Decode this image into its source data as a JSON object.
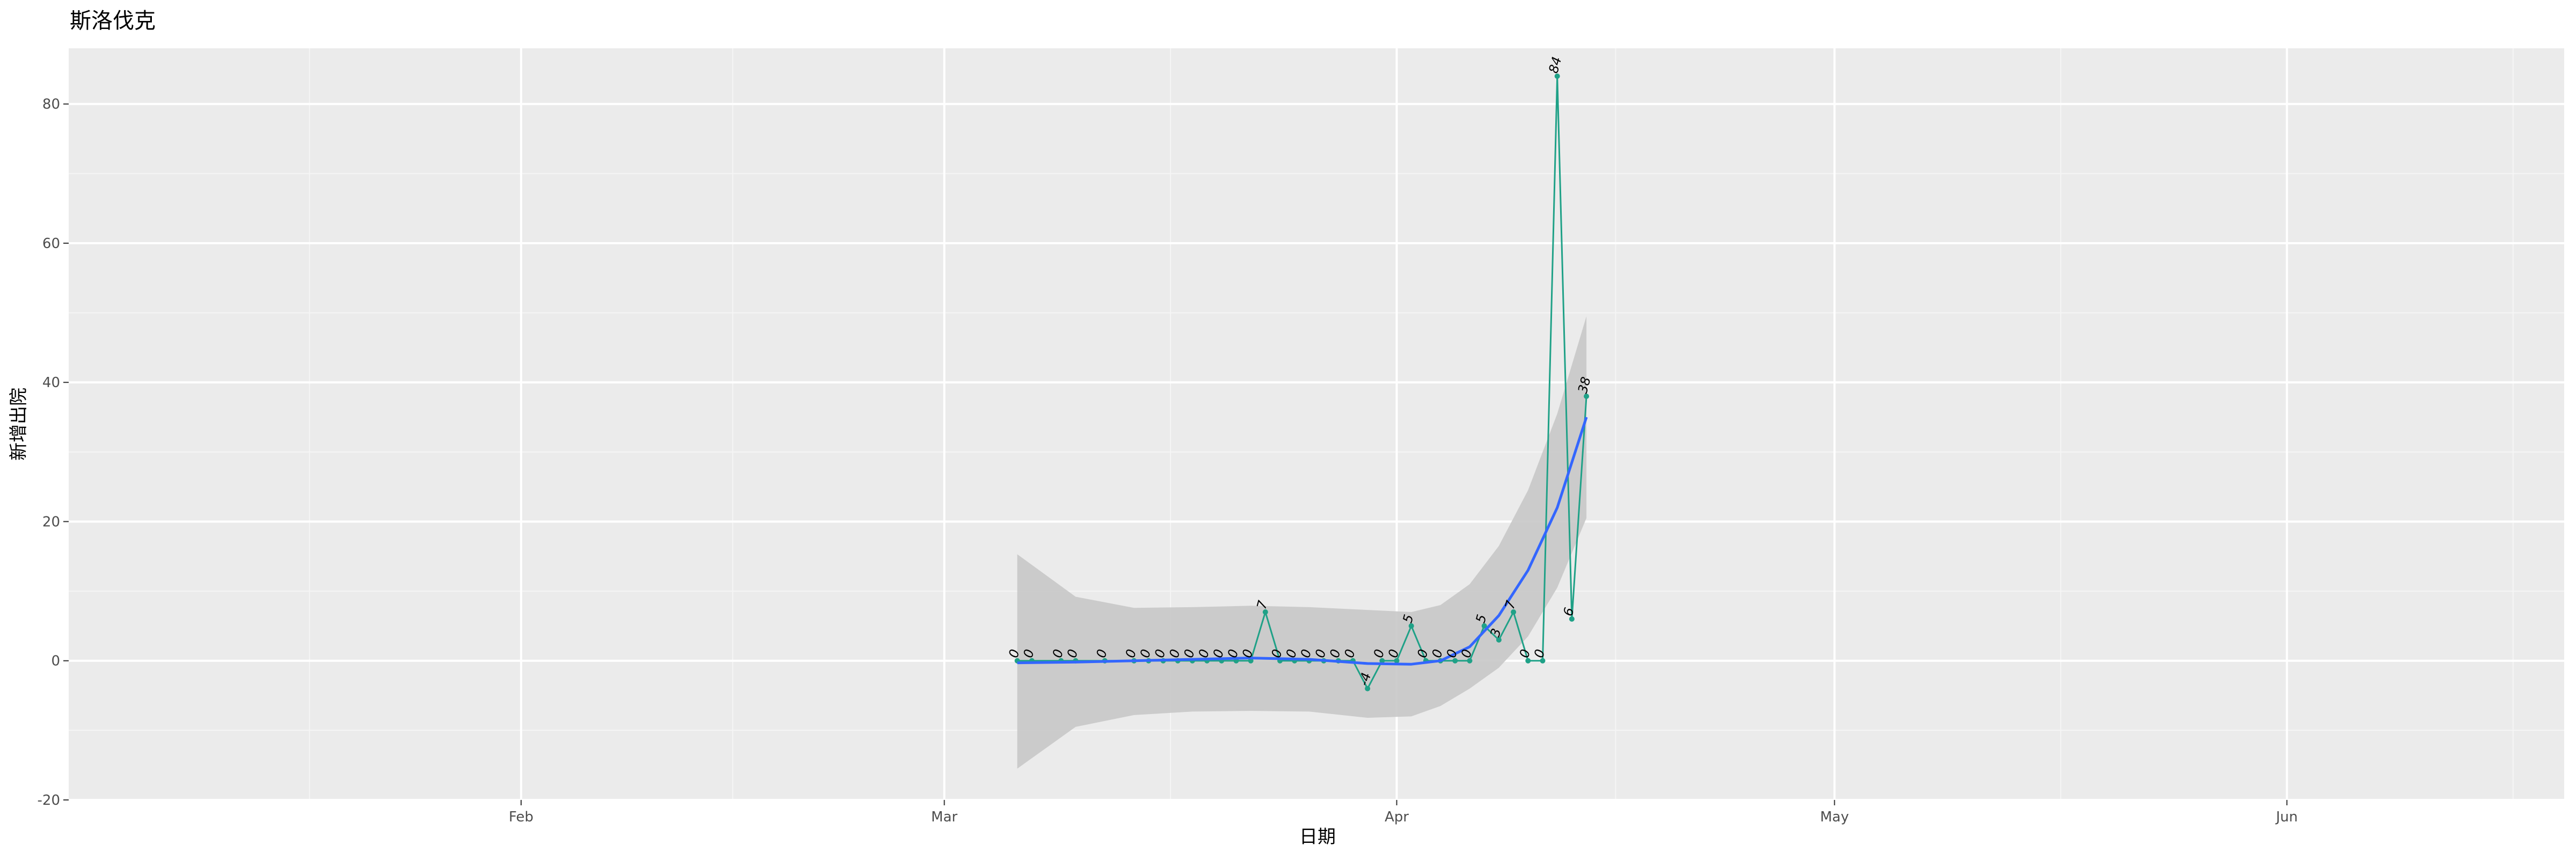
{
  "chart_data": {
    "type": "line",
    "title": "斯洛伐克",
    "xlabel": "日期",
    "ylabel": "新增出院",
    "x_range": [
      "2020-01-01",
      "2020-06-20"
    ],
    "ylim": [
      -20,
      88
    ],
    "x_ticks": [
      {
        "date": "2020-02-01",
        "label": "Feb"
      },
      {
        "date": "2020-03-01",
        "label": "Mar"
      },
      {
        "date": "2020-04-01",
        "label": "Apr"
      },
      {
        "date": "2020-05-01",
        "label": "May"
      },
      {
        "date": "2020-06-01",
        "label": "Jun"
      }
    ],
    "y_ticks": [
      -20,
      0,
      20,
      40,
      60,
      80
    ],
    "grid": true,
    "series": [
      {
        "color": "#1fa187",
        "points": [
          {
            "x": "2020-03-06",
            "y": 0
          },
          {
            "x": "2020-03-07",
            "y": 0
          },
          {
            "x": "2020-03-09",
            "y": 0
          },
          {
            "x": "2020-03-10",
            "y": 0
          },
          {
            "x": "2020-03-12",
            "y": 0
          },
          {
            "x": "2020-03-14",
            "y": 0
          },
          {
            "x": "2020-03-15",
            "y": 0
          },
          {
            "x": "2020-03-16",
            "y": 0
          },
          {
            "x": "2020-03-17",
            "y": 0
          },
          {
            "x": "2020-03-18",
            "y": 0
          },
          {
            "x": "2020-03-19",
            "y": 0
          },
          {
            "x": "2020-03-20",
            "y": 0
          },
          {
            "x": "2020-03-21",
            "y": 0
          },
          {
            "x": "2020-03-22",
            "y": 0
          },
          {
            "x": "2020-03-23",
            "y": 7
          },
          {
            "x": "2020-03-24",
            "y": 0
          },
          {
            "x": "2020-03-25",
            "y": 0
          },
          {
            "x": "2020-03-26",
            "y": 0
          },
          {
            "x": "2020-03-27",
            "y": 0
          },
          {
            "x": "2020-03-28",
            "y": 0
          },
          {
            "x": "2020-03-29",
            "y": 0
          },
          {
            "x": "2020-03-30",
            "y": -4
          },
          {
            "x": "2020-03-31",
            "y": 0
          },
          {
            "x": "2020-04-01",
            "y": 0
          },
          {
            "x": "2020-04-02",
            "y": 5
          },
          {
            "x": "2020-04-03",
            "y": 0
          },
          {
            "x": "2020-04-04",
            "y": 0
          },
          {
            "x": "2020-04-05",
            "y": 0
          },
          {
            "x": "2020-04-06",
            "y": 0
          },
          {
            "x": "2020-04-07",
            "y": 5
          },
          {
            "x": "2020-04-08",
            "y": 3
          },
          {
            "x": "2020-04-09",
            "y": 7
          },
          {
            "x": "2020-04-10",
            "y": 0
          },
          {
            "x": "2020-04-11",
            "y": 0
          },
          {
            "x": "2020-04-12",
            "y": 84
          },
          {
            "x": "2020-04-13",
            "y": 6
          },
          {
            "x": "2020-04-14",
            "y": 38
          }
        ]
      }
    ],
    "smooth": {
      "color": "#3366ff",
      "band_color": "#c8c8c8",
      "points": [
        {
          "x": "2020-03-06",
          "y": -0.3,
          "lo": -15.5,
          "hi": 15.3
        },
        {
          "x": "2020-03-10",
          "y": -0.2,
          "lo": -9.5,
          "hi": 9.2
        },
        {
          "x": "2020-03-14",
          "y": 0.0,
          "lo": -7.8,
          "hi": 7.6
        },
        {
          "x": "2020-03-18",
          "y": 0.2,
          "lo": -7.3,
          "hi": 7.7
        },
        {
          "x": "2020-03-22",
          "y": 0.4,
          "lo": -7.2,
          "hi": 7.9
        },
        {
          "x": "2020-03-26",
          "y": 0.2,
          "lo": -7.3,
          "hi": 7.7
        },
        {
          "x": "2020-03-30",
          "y": -0.4,
          "lo": -8.2,
          "hi": 7.3
        },
        {
          "x": "2020-04-02",
          "y": -0.5,
          "lo": -8.0,
          "hi": 7.0
        },
        {
          "x": "2020-04-04",
          "y": 0.0,
          "lo": -6.5,
          "hi": 8.0
        },
        {
          "x": "2020-04-06",
          "y": 2.0,
          "lo": -4.0,
          "hi": 11.0
        },
        {
          "x": "2020-04-08",
          "y": 6.5,
          "lo": -1.0,
          "hi": 16.5
        },
        {
          "x": "2020-04-10",
          "y": 13.0,
          "lo": 3.5,
          "hi": 24.5
        },
        {
          "x": "2020-04-12",
          "y": 22.0,
          "lo": 10.5,
          "hi": 35.5
        },
        {
          "x": "2020-04-14",
          "y": 35.0,
          "lo": 20.5,
          "hi": 49.5
        }
      ]
    }
  }
}
